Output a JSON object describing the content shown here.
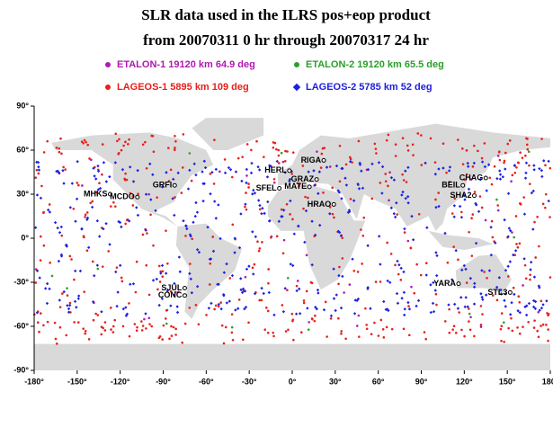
{
  "chart_data": {
    "type": "map",
    "title": "SLR data used in the ILRS pos+eop product",
    "subtitle": "from 20070311 0 hr through 20070317 24 hr",
    "series": [
      {
        "name": "ETALON-1 19120 km 64.9 deg",
        "color": "#b01ab0"
      },
      {
        "name": "ETALON-2 19120 km 65.5 deg",
        "color": "#2aa02a"
      },
      {
        "name": "LAGEOS-1  5895 km  109 deg",
        "color": "#e8201a"
      },
      {
        "name": "LAGEOS-2  5785 km   52 deg",
        "color": "#2020e0"
      }
    ],
    "xlim": [
      -180,
      180
    ],
    "ylim": [
      -90,
      90
    ],
    "xticks": [
      {
        "value": -180,
        "label": "-180°"
      },
      {
        "value": -150,
        "label": "-150°"
      },
      {
        "value": -120,
        "label": "-120°"
      },
      {
        "value": -90,
        "label": "-90°"
      },
      {
        "value": -60,
        "label": "-60°"
      },
      {
        "value": -30,
        "label": "-30°"
      },
      {
        "value": 0,
        "label": "0°"
      },
      {
        "value": 30,
        "label": "30°"
      },
      {
        "value": 60,
        "label": "60°"
      },
      {
        "value": 90,
        "label": "90°"
      },
      {
        "value": 120,
        "label": "120°"
      },
      {
        "value": 150,
        "label": "150°"
      },
      {
        "value": 180,
        "label": "180°"
      }
    ],
    "yticks": [
      {
        "value": 90,
        "label": "90°"
      },
      {
        "value": 60,
        "label": "60°"
      },
      {
        "value": 30,
        "label": "30°"
      },
      {
        "value": 0,
        "label": "0°"
      },
      {
        "value": -30,
        "label": "-30°"
      },
      {
        "value": -60,
        "label": "-60°"
      },
      {
        "value": -90,
        "label": "-90°"
      }
    ],
    "stations": [
      {
        "label": "MHKS",
        "lon": -127,
        "lat": 30
      },
      {
        "label": "MCDO",
        "lon": -108,
        "lat": 28
      },
      {
        "label": "GRFI",
        "lon": -82,
        "lat": 36
      },
      {
        "label": "RIGA",
        "lon": 22,
        "lat": 53
      },
      {
        "label": "HERL",
        "lon": -2,
        "lat": 46
      },
      {
        "label": "GRAZ",
        "lon": 17,
        "lat": 40
      },
      {
        "label": "MATE",
        "lon": 12,
        "lat": 35
      },
      {
        "label": "SFEL",
        "lon": -9,
        "lat": 34
      },
      {
        "label": "HRAO",
        "lon": 29,
        "lat": 23
      },
      {
        "label": "CHAG",
        "lon": 135,
        "lat": 41
      },
      {
        "label": "BEIL",
        "lon": 119,
        "lat": 36
      },
      {
        "label": "SHA2",
        "lon": 127,
        "lat": 29
      },
      {
        "label": "SJUL",
        "lon": -75,
        "lat": -34
      },
      {
        "label": "CONC",
        "lon": -75,
        "lat": -39
      },
      {
        "label": "YARA",
        "lon": 116,
        "lat": -31
      },
      {
        "label": "STL3",
        "lon": 152,
        "lat": -37
      }
    ]
  }
}
